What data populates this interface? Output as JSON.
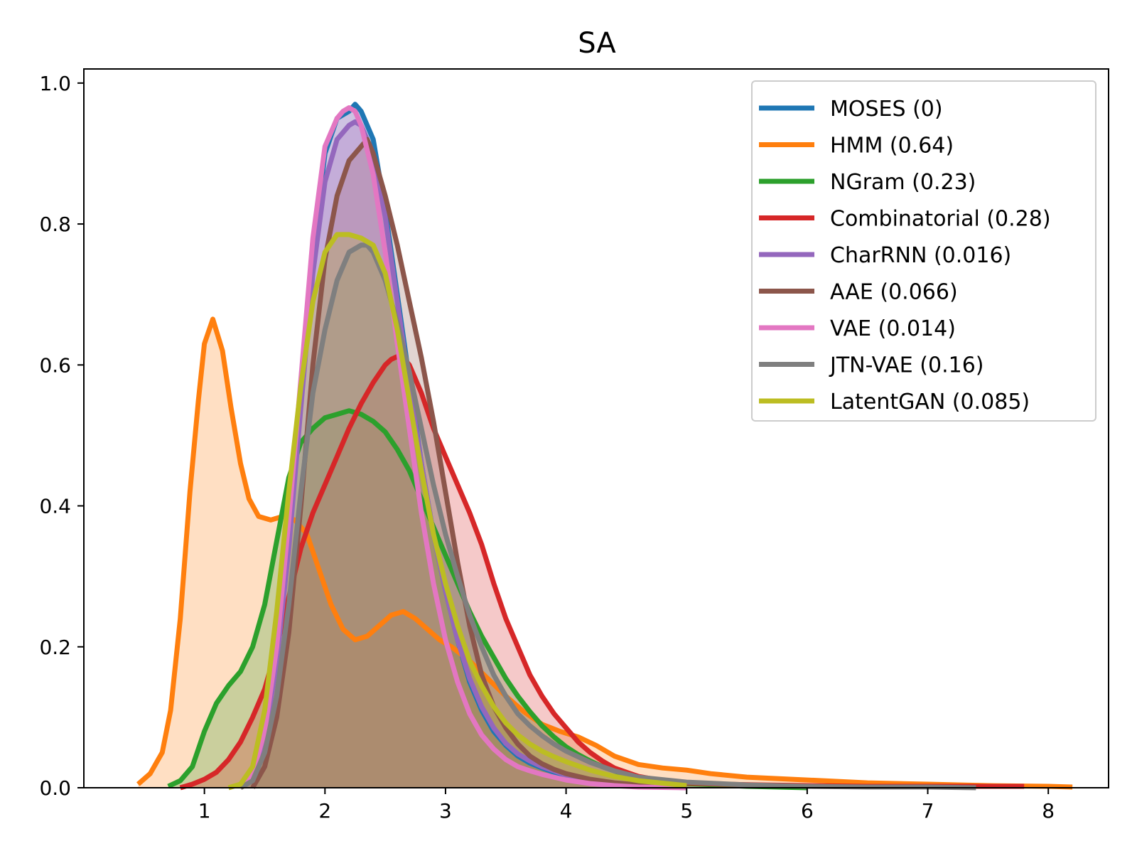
{
  "chart_data": {
    "type": "area",
    "title": "SA",
    "xlabel": "",
    "ylabel": "",
    "xlim": [
      0,
      8.5
    ],
    "ylim": [
      0,
      1.02
    ],
    "xticks": [
      1,
      2,
      3,
      4,
      5,
      6,
      7,
      8
    ],
    "xtick_labels": [
      "1",
      "2",
      "3",
      "4",
      "5",
      "6",
      "7",
      "8"
    ],
    "yticks": [
      0,
      0.2,
      0.4,
      0.6,
      0.8,
      1.0
    ],
    "ytick_labels": [
      "0.0",
      "0.2",
      "0.4",
      "0.6",
      "0.8",
      "1.0"
    ],
    "grid": false,
    "legend_position": "top-right",
    "series": [
      {
        "name": "MOSES (0)",
        "color": "#1f77b4",
        "x": [
          1.3,
          1.4,
          1.5,
          1.6,
          1.7,
          1.8,
          1.9,
          2.0,
          2.1,
          2.2,
          2.25,
          2.3,
          2.4,
          2.5,
          2.6,
          2.7,
          2.8,
          2.9,
          3.0,
          3.1,
          3.2,
          3.3,
          3.4,
          3.5,
          3.6,
          3.7,
          3.8,
          3.9,
          4.0,
          4.2,
          4.4,
          4.6,
          5.0
        ],
        "y": [
          0.0,
          0.02,
          0.07,
          0.18,
          0.35,
          0.56,
          0.76,
          0.9,
          0.95,
          0.96,
          0.97,
          0.96,
          0.92,
          0.82,
          0.7,
          0.58,
          0.46,
          0.36,
          0.28,
          0.21,
          0.15,
          0.11,
          0.08,
          0.06,
          0.045,
          0.035,
          0.028,
          0.022,
          0.017,
          0.01,
          0.006,
          0.003,
          0.0
        ]
      },
      {
        "name": "HMM (0.64)",
        "color": "#ff7f0e",
        "x": [
          0.45,
          0.55,
          0.65,
          0.72,
          0.8,
          0.88,
          0.95,
          1.0,
          1.07,
          1.15,
          1.22,
          1.3,
          1.37,
          1.45,
          1.55,
          1.65,
          1.75,
          1.85,
          1.95,
          2.05,
          2.15,
          2.25,
          2.35,
          2.45,
          2.55,
          2.65,
          2.75,
          2.85,
          2.95,
          3.05,
          3.2,
          3.35,
          3.5,
          3.65,
          3.8,
          3.95,
          4.1,
          4.25,
          4.4,
          4.6,
          4.8,
          5.0,
          5.2,
          5.5,
          6.0,
          6.5,
          7.0,
          7.5,
          8.0,
          8.2
        ],
        "y": [
          0.005,
          0.02,
          0.05,
          0.11,
          0.24,
          0.42,
          0.55,
          0.63,
          0.665,
          0.62,
          0.54,
          0.46,
          0.41,
          0.385,
          0.38,
          0.385,
          0.38,
          0.36,
          0.31,
          0.26,
          0.225,
          0.21,
          0.215,
          0.23,
          0.245,
          0.25,
          0.24,
          0.225,
          0.21,
          0.2,
          0.18,
          0.155,
          0.13,
          0.108,
          0.09,
          0.08,
          0.072,
          0.06,
          0.045,
          0.033,
          0.028,
          0.025,
          0.02,
          0.015,
          0.011,
          0.007,
          0.005,
          0.003,
          0.002,
          0.001
        ]
      },
      {
        "name": "NGram (0.23)",
        "color": "#2ca02c",
        "x": [
          0.7,
          0.8,
          0.9,
          1.0,
          1.1,
          1.2,
          1.3,
          1.4,
          1.5,
          1.6,
          1.7,
          1.8,
          1.9,
          2.0,
          2.1,
          2.2,
          2.3,
          2.4,
          2.5,
          2.6,
          2.7,
          2.8,
          2.9,
          3.0,
          3.1,
          3.2,
          3.3,
          3.4,
          3.5,
          3.6,
          3.7,
          3.8,
          3.9,
          4.0,
          4.1,
          4.2,
          4.3,
          4.5,
          4.7,
          5.0,
          5.5,
          6.0
        ],
        "y": [
          0.002,
          0.01,
          0.03,
          0.08,
          0.12,
          0.145,
          0.165,
          0.2,
          0.26,
          0.35,
          0.44,
          0.49,
          0.51,
          0.525,
          0.53,
          0.535,
          0.53,
          0.52,
          0.505,
          0.48,
          0.45,
          0.41,
          0.37,
          0.33,
          0.29,
          0.25,
          0.215,
          0.185,
          0.155,
          0.13,
          0.108,
          0.088,
          0.072,
          0.058,
          0.047,
          0.038,
          0.03,
          0.018,
          0.011,
          0.006,
          0.002,
          0.0
        ]
      },
      {
        "name": "Combinatorial (0.28)",
        "color": "#d62728",
        "x": [
          0.8,
          0.9,
          1.0,
          1.1,
          1.2,
          1.3,
          1.4,
          1.5,
          1.6,
          1.7,
          1.8,
          1.9,
          2.0,
          2.1,
          2.2,
          2.3,
          2.4,
          2.5,
          2.55,
          2.6,
          2.65,
          2.7,
          2.8,
          2.9,
          3.0,
          3.1,
          3.2,
          3.3,
          3.4,
          3.5,
          3.6,
          3.7,
          3.8,
          3.9,
          4.0,
          4.1,
          4.2,
          4.3,
          4.4,
          4.6,
          4.8,
          5.0,
          5.3,
          5.6,
          6.0,
          6.5,
          7.0,
          7.4,
          7.8
        ],
        "y": [
          0.0,
          0.005,
          0.012,
          0.022,
          0.04,
          0.065,
          0.1,
          0.14,
          0.2,
          0.27,
          0.34,
          0.39,
          0.43,
          0.47,
          0.51,
          0.545,
          0.575,
          0.6,
          0.608,
          0.612,
          0.61,
          0.6,
          0.56,
          0.51,
          0.47,
          0.43,
          0.39,
          0.345,
          0.29,
          0.24,
          0.2,
          0.16,
          0.13,
          0.105,
          0.085,
          0.065,
          0.05,
          0.038,
          0.028,
          0.016,
          0.01,
          0.007,
          0.005,
          0.004,
          0.003,
          0.002,
          0.002,
          0.002,
          0.002
        ]
      },
      {
        "name": "CharRNN (0.016)",
        "color": "#9467bd",
        "x": [
          1.3,
          1.4,
          1.5,
          1.6,
          1.7,
          1.8,
          1.9,
          2.0,
          2.1,
          2.2,
          2.25,
          2.3,
          2.4,
          2.5,
          2.6,
          2.7,
          2.8,
          2.9,
          3.0,
          3.1,
          3.2,
          3.3,
          3.4,
          3.5,
          3.6,
          3.7,
          3.8,
          3.9,
          4.0,
          4.2,
          4.4,
          4.6,
          5.0
        ],
        "y": [
          0.0,
          0.02,
          0.07,
          0.18,
          0.34,
          0.54,
          0.73,
          0.86,
          0.92,
          0.94,
          0.945,
          0.94,
          0.9,
          0.81,
          0.69,
          0.57,
          0.46,
          0.36,
          0.28,
          0.21,
          0.155,
          0.115,
          0.085,
          0.063,
          0.048,
          0.038,
          0.03,
          0.024,
          0.018,
          0.011,
          0.006,
          0.003,
          0.0
        ]
      },
      {
        "name": "AAE (0.066)",
        "color": "#8c564b",
        "x": [
          1.4,
          1.5,
          1.6,
          1.7,
          1.8,
          1.9,
          2.0,
          2.1,
          2.2,
          2.3,
          2.35,
          2.4,
          2.5,
          2.6,
          2.7,
          2.8,
          2.9,
          3.0,
          3.1,
          3.2,
          3.3,
          3.4,
          3.5,
          3.6,
          3.7,
          3.8,
          3.9,
          4.0,
          4.2,
          4.4,
          4.6,
          5.0
        ],
        "y": [
          0.0,
          0.03,
          0.1,
          0.22,
          0.4,
          0.6,
          0.75,
          0.84,
          0.89,
          0.91,
          0.92,
          0.9,
          0.84,
          0.77,
          0.69,
          0.61,
          0.52,
          0.42,
          0.32,
          0.23,
          0.16,
          0.115,
          0.085,
          0.062,
          0.045,
          0.034,
          0.026,
          0.02,
          0.012,
          0.007,
          0.004,
          0.0
        ]
      },
      {
        "name": "VAE (0.014)",
        "color": "#e377c2",
        "x": [
          1.3,
          1.4,
          1.5,
          1.6,
          1.7,
          1.8,
          1.9,
          2.0,
          2.1,
          2.15,
          2.2,
          2.25,
          2.3,
          2.4,
          2.5,
          2.6,
          2.7,
          2.8,
          2.9,
          3.0,
          3.1,
          3.2,
          3.3,
          3.4,
          3.5,
          3.6,
          3.7,
          3.8,
          3.9,
          4.0,
          4.2,
          4.4,
          4.6,
          5.0
        ],
        "y": [
          0.0,
          0.02,
          0.08,
          0.2,
          0.38,
          0.58,
          0.78,
          0.91,
          0.95,
          0.96,
          0.965,
          0.96,
          0.94,
          0.87,
          0.76,
          0.63,
          0.51,
          0.39,
          0.29,
          0.21,
          0.15,
          0.105,
          0.075,
          0.055,
          0.04,
          0.03,
          0.024,
          0.019,
          0.015,
          0.011,
          0.006,
          0.003,
          0.001,
          0.0
        ]
      },
      {
        "name": "JTN-VAE (0.16)",
        "color": "#7f7f7f",
        "x": [
          1.3,
          1.4,
          1.5,
          1.6,
          1.7,
          1.8,
          1.9,
          2.0,
          2.1,
          2.2,
          2.3,
          2.35,
          2.4,
          2.5,
          2.6,
          2.7,
          2.8,
          2.9,
          3.0,
          3.1,
          3.2,
          3.3,
          3.4,
          3.5,
          3.6,
          3.7,
          3.8,
          3.9,
          4.0,
          4.2,
          4.4,
          4.6,
          5.0,
          5.5,
          6.0,
          6.5,
          7.0,
          7.4
        ],
        "y": [
          0.0,
          0.01,
          0.05,
          0.13,
          0.26,
          0.42,
          0.56,
          0.65,
          0.72,
          0.76,
          0.77,
          0.77,
          0.76,
          0.72,
          0.66,
          0.59,
          0.51,
          0.43,
          0.36,
          0.3,
          0.245,
          0.2,
          0.16,
          0.13,
          0.105,
          0.088,
          0.074,
          0.062,
          0.052,
          0.036,
          0.024,
          0.015,
          0.008,
          0.004,
          0.002,
          0.001,
          0.001,
          0.0
        ]
      },
      {
        "name": "LatentGAN (0.085)",
        "color": "#bcbd22",
        "x": [
          1.2,
          1.3,
          1.4,
          1.5,
          1.6,
          1.7,
          1.8,
          1.9,
          2.0,
          2.1,
          2.2,
          2.3,
          2.4,
          2.5,
          2.6,
          2.7,
          2.8,
          2.9,
          3.0,
          3.1,
          3.2,
          3.3,
          3.4,
          3.5,
          3.6,
          3.7,
          3.8,
          3.9,
          4.0,
          4.2,
          4.4,
          4.6,
          5.0
        ],
        "y": [
          0.0,
          0.005,
          0.03,
          0.11,
          0.25,
          0.42,
          0.57,
          0.69,
          0.76,
          0.785,
          0.785,
          0.78,
          0.77,
          0.73,
          0.65,
          0.55,
          0.45,
          0.36,
          0.29,
          0.23,
          0.18,
          0.145,
          0.115,
          0.092,
          0.075,
          0.062,
          0.052,
          0.044,
          0.037,
          0.025,
          0.016,
          0.01,
          0.003
        ]
      }
    ]
  }
}
